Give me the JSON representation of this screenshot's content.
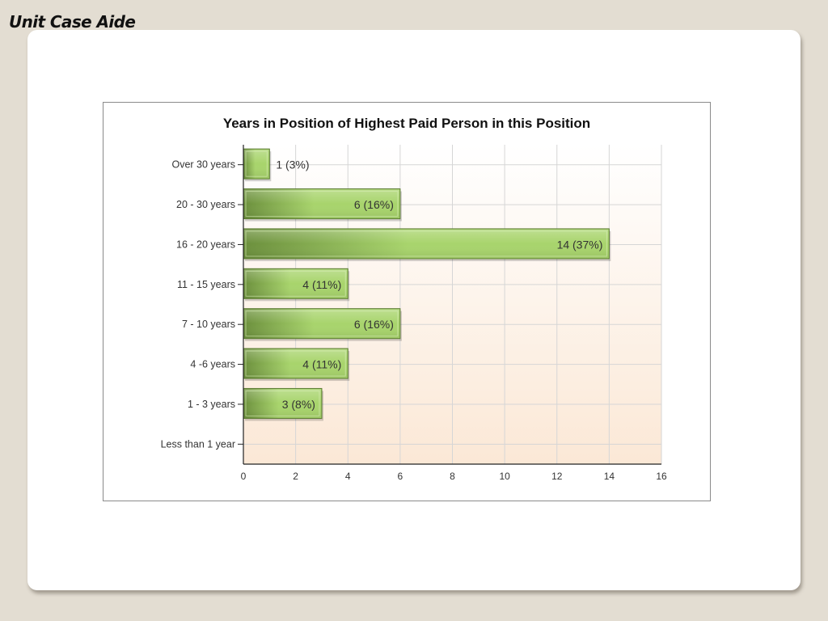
{
  "slide": {
    "title": "Unit Case Aide"
  },
  "chart_data": {
    "type": "bar",
    "orientation": "horizontal",
    "title": "Years in Position of Highest Paid Person in this Position",
    "categories": [
      "Over 30 years",
      "20 - 30 years",
      "16 - 20 years",
      "11 - 15 years",
      "7 - 10 years",
      "4 -6 years",
      "1 - 3 years",
      "Less than 1 year"
    ],
    "values": [
      1,
      6,
      14,
      4,
      6,
      4,
      3,
      0
    ],
    "labels": [
      "1 (3%)",
      "6 (16%)",
      "14 (37%)",
      "4 (11%)",
      "6 (16%)",
      "4 (11%)",
      "3 (8%)",
      ""
    ],
    "xlim": [
      0,
      16
    ],
    "xticks": [
      "0",
      "2",
      "4",
      "6",
      "8",
      "10",
      "12",
      "14",
      "16"
    ],
    "grid": true,
    "colors": {
      "bar_dark": "#6b8f3c",
      "bar_light": "#a8d46c",
      "bar_edge": "#5a7a30",
      "grid": "#d6d6d6",
      "bg_top": "#ffffff",
      "bg_bottom": "#fbe8d6"
    }
  }
}
